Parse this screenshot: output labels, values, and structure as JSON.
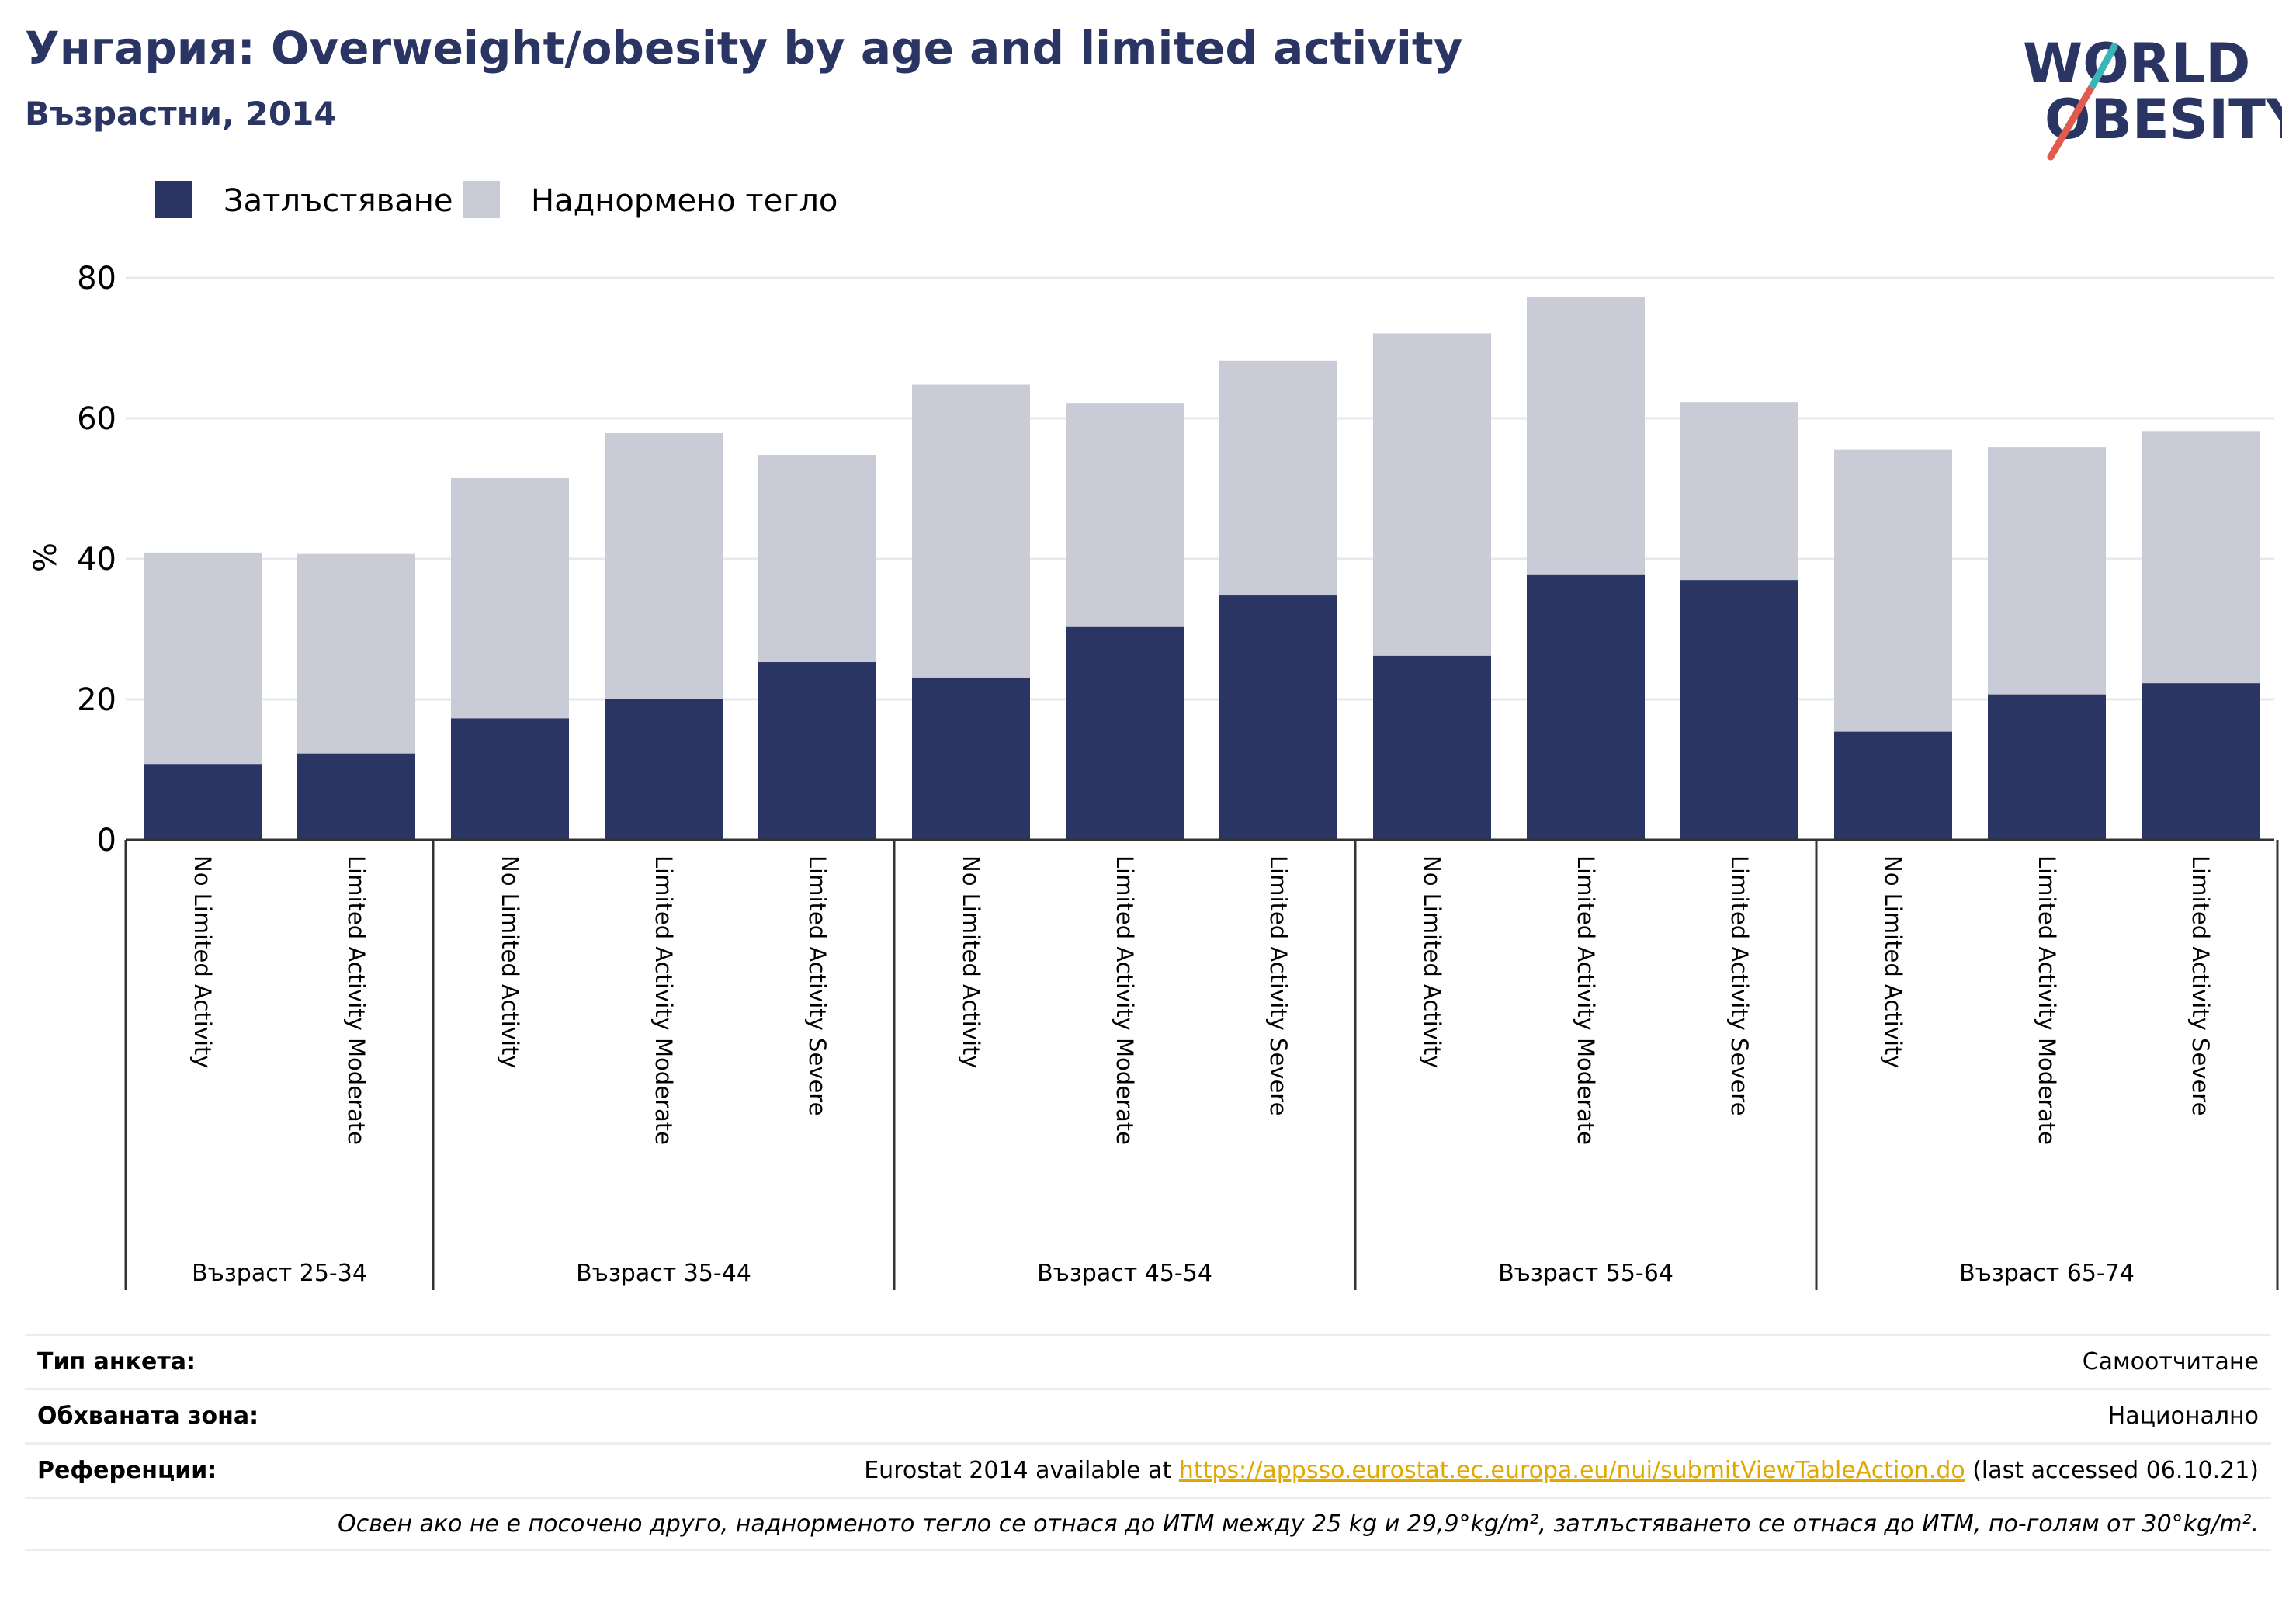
{
  "header": {
    "title": "Унгария: Overweight/obesity by age and limited activity",
    "subtitle": "Възрастни, 2014"
  },
  "logo": {
    "line1": "WORLD",
    "line2": "OBESITY"
  },
  "colors": {
    "obesity": "#2b3563",
    "overweight": "#c9cbd7",
    "title": "#2b3563",
    "logo_slash": "#e05b4b",
    "logo_slash_top": "#3bb6b8",
    "link": "#e0a800"
  },
  "chart_data": {
    "type": "bar",
    "stacked": true,
    "ylabel": "%",
    "ylim": [
      0,
      80
    ],
    "yticks": [
      0,
      20,
      40,
      60,
      80
    ],
    "grid": true,
    "legend_position": "top-left",
    "groups": [
      {
        "label": "Възраст 25-34",
        "categories": [
          "No Limited Activity",
          "Limited Activity Moderate"
        ]
      },
      {
        "label": "Възраст 35-44",
        "categories": [
          "No Limited Activity",
          "Limited Activity Moderate",
          "Limited Activity Severe"
        ]
      },
      {
        "label": "Възраст 45-54",
        "categories": [
          "No Limited Activity",
          "Limited Activity Moderate",
          "Limited Activity Severe"
        ]
      },
      {
        "label": "Възраст 55-64",
        "categories": [
          "No Limited Activity",
          "Limited Activity Moderate",
          "Limited Activity Severe"
        ]
      },
      {
        "label": "Възраст 65-74",
        "categories": [
          "No Limited Activity",
          "Limited Activity Moderate",
          "Limited Activity Severe"
        ]
      }
    ],
    "series": [
      {
        "name": "Затлъстяване",
        "values": [
          10.8,
          12.3,
          17.3,
          20.1,
          25.3,
          23.1,
          30.3,
          34.8,
          26.2,
          37.7,
          37.0,
          15.4,
          20.7,
          22.3
        ]
      },
      {
        "name": "Наднормено тегло",
        "values": [
          30.1,
          28.4,
          34.2,
          37.8,
          29.5,
          41.7,
          31.9,
          33.4,
          45.9,
          39.6,
          25.3,
          40.1,
          35.2,
          35.9
        ]
      }
    ]
  },
  "info": {
    "survey_label": "Тип анкета:",
    "survey_value": "Самоотчитане",
    "coverage_label": "Обхваната зона:",
    "coverage_value": "Национално",
    "references_label": "Референции:",
    "references_prefix": "Eurostat 2014 available at ",
    "references_link": "https://appsso.eurostat.ec.europa.eu/nui/submitViewTableAction.do",
    "references_suffix": " (last accessed 06.10.21)",
    "note": "Освен ако не е посочено друго, наднорменото тегло се отнася до ИТМ между 25 kg и 29,9°kg/m², затлъстяването се отнася до ИТМ, по-голям от 30°kg/m²."
  }
}
